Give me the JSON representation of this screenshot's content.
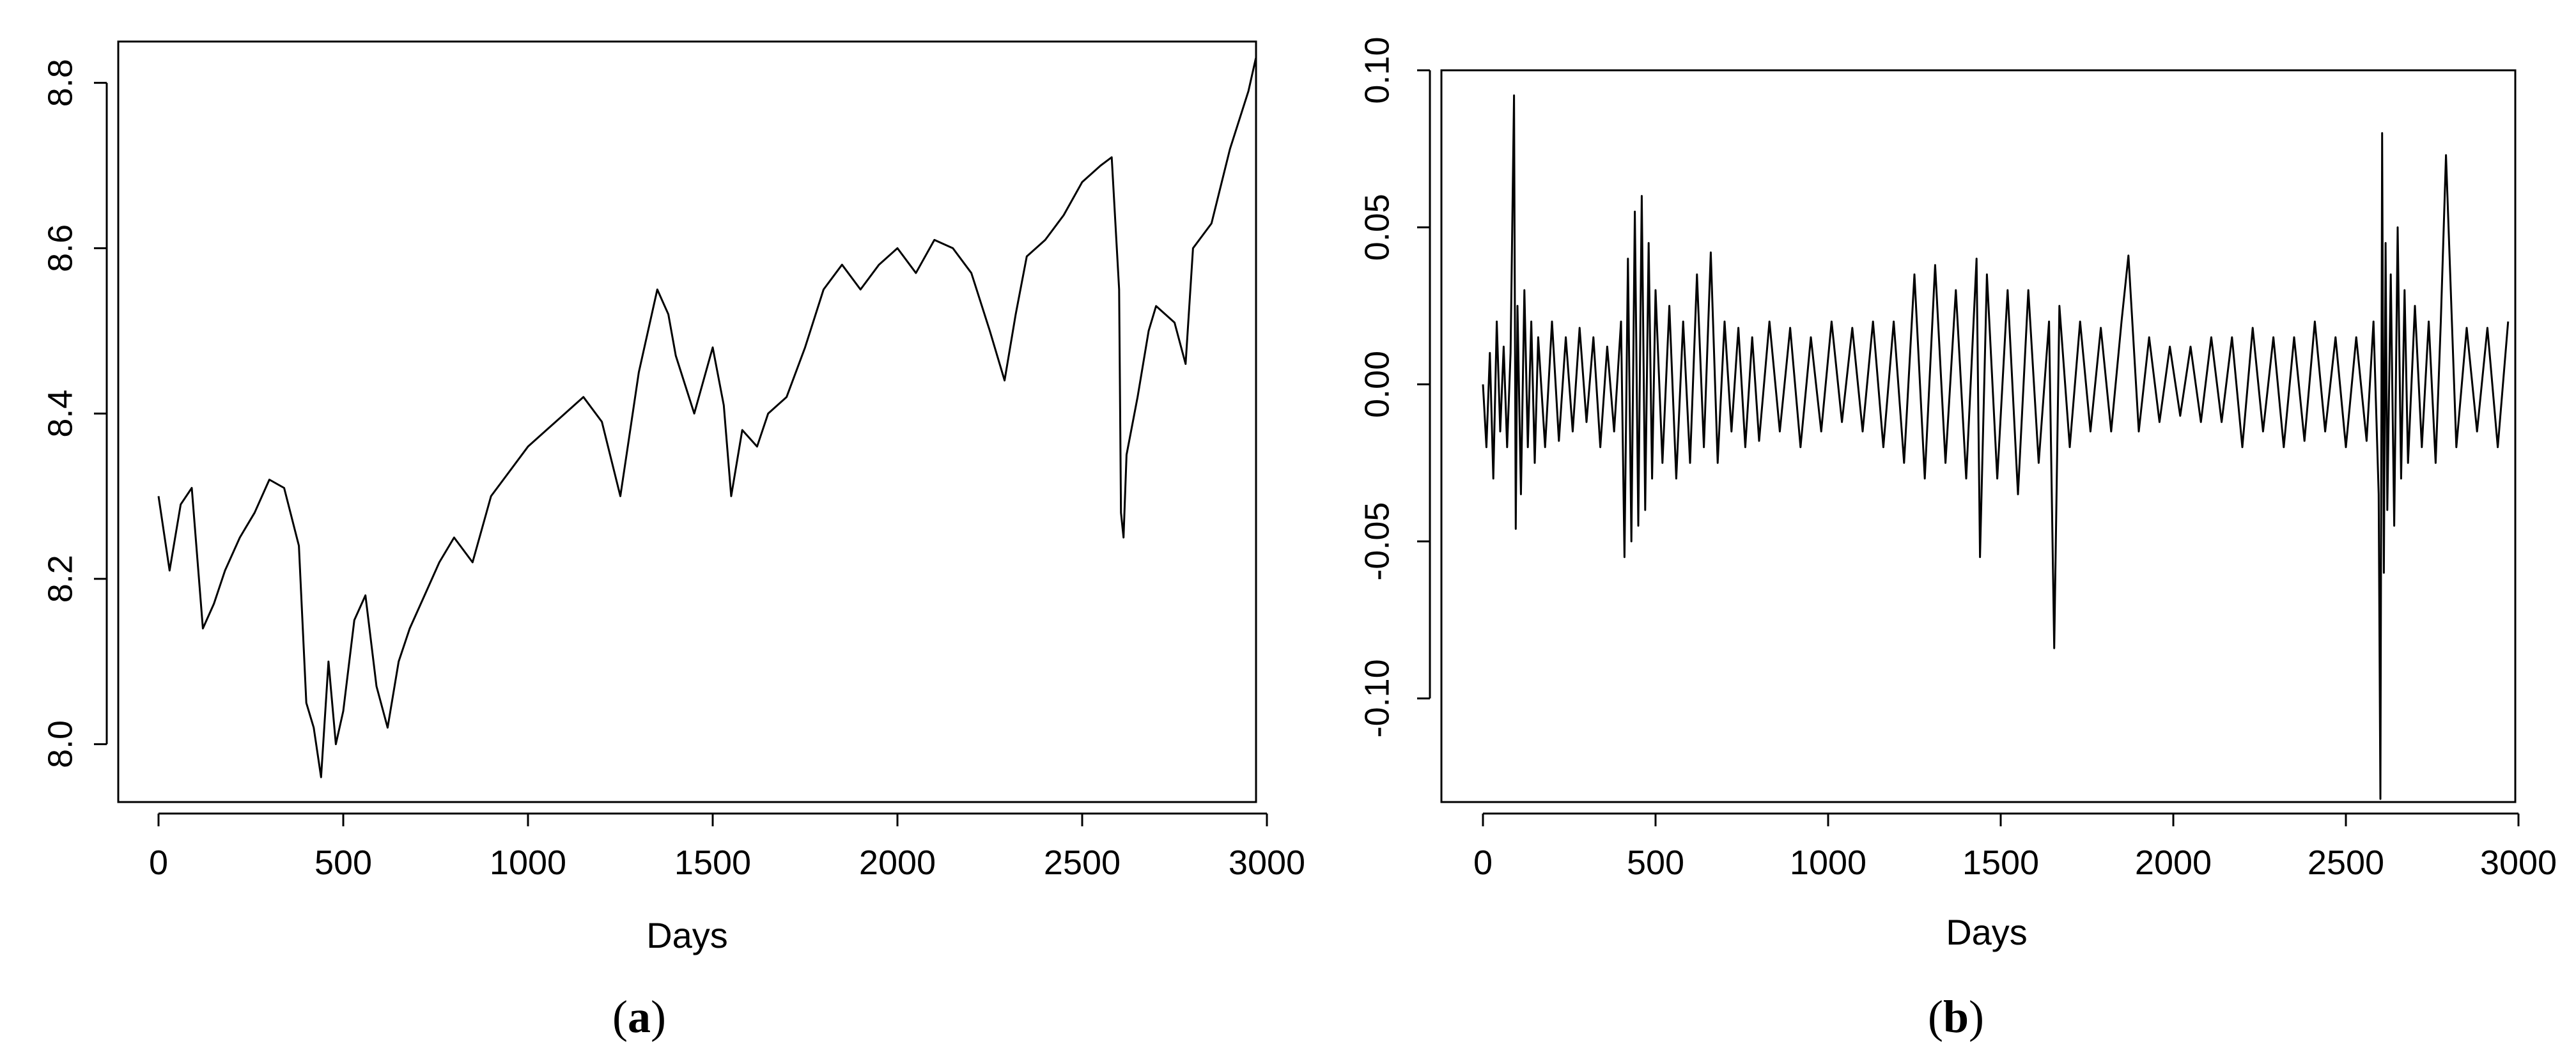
{
  "chart_data": [
    {
      "type": "line",
      "panel_label": "a",
      "xlabel": "Days",
      "ylabel": "",
      "xlim": [
        0,
        3000
      ],
      "ylim": [
        7.93,
        8.85
      ],
      "xticks": [
        0,
        500,
        1000,
        1500,
        2000,
        2500,
        3000
      ],
      "xtick_labels": [
        "0",
        "500",
        "1000",
        "1500",
        "2000",
        "2500",
        "3000"
      ],
      "yticks": [
        8.0,
        8.2,
        8.4,
        8.6,
        8.8
      ],
      "ytick_labels": [
        "8.0",
        "8.2",
        "8.4",
        "8.6",
        "8.8"
      ],
      "grid": false,
      "series": [
        {
          "x": [
            0,
            30,
            60,
            90,
            120,
            150,
            180,
            220,
            260,
            300,
            340,
            380,
            400,
            420,
            440,
            460,
            480,
            500,
            530,
            560,
            590,
            620,
            650,
            680,
            720,
            760,
            800,
            850,
            900,
            950,
            1000,
            1050,
            1100,
            1150,
            1200,
            1250,
            1270,
            1300,
            1350,
            1380,
            1400,
            1450,
            1500,
            1530,
            1550,
            1580,
            1620,
            1650,
            1700,
            1750,
            1800,
            1850,
            1900,
            1950,
            2000,
            2050,
            2100,
            2150,
            2200,
            2250,
            2290,
            2320,
            2350,
            2400,
            2450,
            2500,
            2550,
            2580,
            2600,
            2605,
            2612,
            2620,
            2650,
            2680,
            2700,
            2750,
            2780,
            2800,
            2850,
            2900,
            2950,
            2970
          ],
          "y": [
            8.3,
            8.21,
            8.29,
            8.31,
            8.14,
            8.17,
            8.21,
            8.25,
            8.28,
            8.32,
            8.31,
            8.24,
            8.05,
            8.02,
            7.96,
            8.1,
            8.0,
            8.04,
            8.15,
            8.18,
            8.07,
            8.02,
            8.1,
            8.14,
            8.18,
            8.22,
            8.25,
            8.22,
            8.3,
            8.33,
            8.36,
            8.38,
            8.4,
            8.42,
            8.39,
            8.3,
            8.36,
            8.45,
            8.55,
            8.52,
            8.47,
            8.4,
            8.48,
            8.41,
            8.3,
            8.38,
            8.36,
            8.4,
            8.42,
            8.48,
            8.55,
            8.58,
            8.55,
            8.58,
            8.6,
            8.57,
            8.61,
            8.6,
            8.57,
            8.5,
            8.44,
            8.52,
            8.59,
            8.61,
            8.64,
            8.68,
            8.7,
            8.71,
            8.55,
            8.28,
            8.25,
            8.35,
            8.42,
            8.5,
            8.53,
            8.51,
            8.46,
            8.6,
            8.63,
            8.72,
            8.79,
            8.83
          ]
        }
      ]
    },
    {
      "type": "line",
      "panel_label": "b",
      "xlabel": "Days",
      "ylabel": "",
      "xlim": [
        0,
        3000
      ],
      "ylim": [
        -0.133,
        0.1
      ],
      "xticks": [
        0,
        500,
        1000,
        1500,
        2000,
        2500,
        3000
      ],
      "xtick_labels": [
        "0",
        "500",
        "1000",
        "1500",
        "2000",
        "2500",
        "3000"
      ],
      "yticks": [
        -0.1,
        -0.05,
        0.0,
        0.05,
        0.1
      ],
      "ytick_labels": [
        "-0.10",
        "-0.05",
        "0.00",
        "0.05",
        "0.10"
      ],
      "grid": false,
      "series": [
        {
          "x": [
            0,
            10,
            20,
            30,
            40,
            50,
            60,
            70,
            80,
            90,
            95,
            100,
            110,
            120,
            130,
            140,
            150,
            160,
            180,
            200,
            220,
            240,
            260,
            280,
            300,
            320,
            340,
            360,
            380,
            400,
            410,
            420,
            430,
            440,
            450,
            460,
            470,
            480,
            490,
            500,
            520,
            540,
            560,
            580,
            600,
            620,
            640,
            660,
            680,
            700,
            720,
            740,
            760,
            780,
            800,
            830,
            860,
            890,
            920,
            950,
            980,
            1010,
            1040,
            1070,
            1100,
            1130,
            1160,
            1190,
            1220,
            1250,
            1280,
            1310,
            1340,
            1370,
            1400,
            1430,
            1440,
            1460,
            1490,
            1520,
            1550,
            1580,
            1610,
            1640,
            1655,
            1670,
            1700,
            1730,
            1760,
            1790,
            1820,
            1850,
            1870,
            1900,
            1930,
            1960,
            1990,
            2020,
            2050,
            2080,
            2110,
            2140,
            2170,
            2200,
            2230,
            2260,
            2290,
            2320,
            2350,
            2380,
            2410,
            2440,
            2470,
            2500,
            2530,
            2560,
            2580,
            2595,
            2600,
            2605,
            2610,
            2615,
            2620,
            2630,
            2640,
            2650,
            2660,
            2670,
            2680,
            2700,
            2720,
            2740,
            2760,
            2775,
            2790,
            2820,
            2850,
            2880,
            2910,
            2940,
            2970
          ],
          "y": [
            0.0,
            -0.02,
            0.01,
            -0.03,
            0.02,
            -0.015,
            0.012,
            -0.02,
            0.01,
            0.092,
            -0.046,
            0.025,
            -0.035,
            0.03,
            -0.02,
            0.02,
            -0.025,
            0.015,
            -0.02,
            0.02,
            -0.018,
            0.015,
            -0.015,
            0.018,
            -0.012,
            0.015,
            -0.02,
            0.012,
            -0.015,
            0.02,
            -0.055,
            0.04,
            -0.05,
            0.055,
            -0.045,
            0.06,
            -0.04,
            0.045,
            -0.03,
            0.03,
            -0.025,
            0.025,
            -0.03,
            0.02,
            -0.025,
            0.035,
            -0.02,
            0.042,
            -0.025,
            0.02,
            -0.015,
            0.018,
            -0.02,
            0.015,
            -0.018,
            0.02,
            -0.015,
            0.018,
            -0.02,
            0.015,
            -0.015,
            0.02,
            -0.012,
            0.018,
            -0.015,
            0.02,
            -0.02,
            0.02,
            -0.025,
            0.035,
            -0.03,
            0.038,
            -0.025,
            0.03,
            -0.03,
            0.04,
            -0.055,
            0.035,
            -0.03,
            0.03,
            -0.035,
            0.03,
            -0.025,
            0.02,
            -0.084,
            0.025,
            -0.02,
            0.02,
            -0.015,
            0.018,
            -0.015,
            0.02,
            0.041,
            -0.015,
            0.015,
            -0.012,
            0.012,
            -0.01,
            0.012,
            -0.012,
            0.015,
            -0.012,
            0.015,
            -0.02,
            0.018,
            -0.015,
            0.015,
            -0.02,
            0.015,
            -0.018,
            0.02,
            -0.015,
            0.015,
            -0.02,
            0.015,
            -0.018,
            0.02,
            -0.035,
            -0.132,
            0.08,
            -0.06,
            0.045,
            -0.04,
            0.035,
            -0.045,
            0.05,
            -0.03,
            0.03,
            -0.025,
            0.025,
            -0.02,
            0.02,
            -0.025,
            0.02,
            0.073,
            -0.02,
            0.018,
            -0.015,
            0.018,
            -0.02,
            0.02
          ]
        }
      ]
    }
  ]
}
